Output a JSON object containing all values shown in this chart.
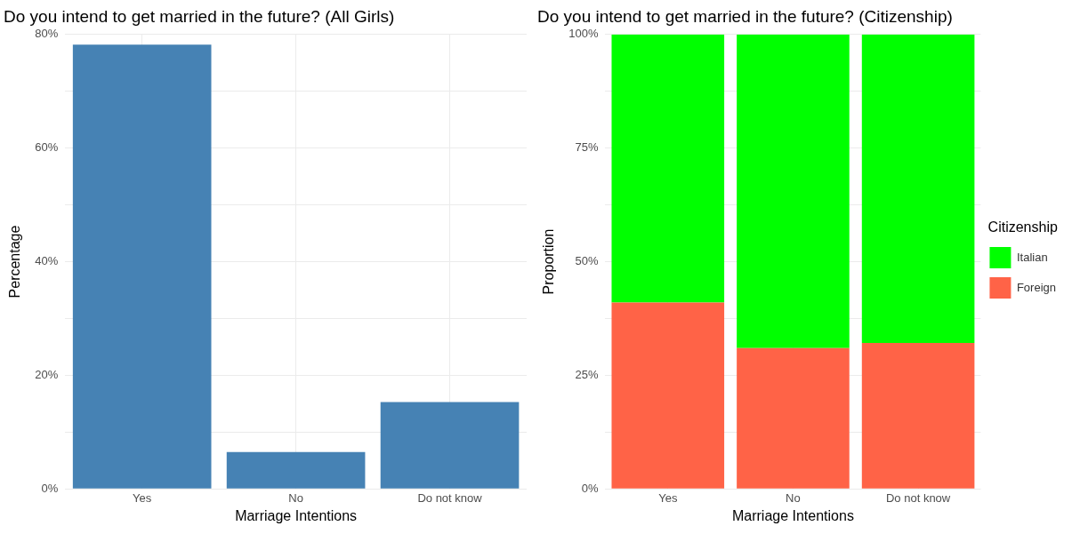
{
  "chart_data": [
    {
      "type": "bar",
      "title": "Do you intend to get married in the future? (All Girls)",
      "xlabel": "Marriage Intentions",
      "ylabel": "Percentage",
      "categories": [
        "Yes",
        "No",
        "Do not know"
      ],
      "values": [
        78.2,
        6.5,
        15.3
      ],
      "color": "#4682b4",
      "ylim": [
        0,
        80
      ],
      "yticks": [
        {
          "value": 0,
          "label": "0%"
        },
        {
          "value": 10,
          "label": null
        },
        {
          "value": 20,
          "label": "20%"
        },
        {
          "value": 30,
          "label": null
        },
        {
          "value": 40,
          "label": "40%"
        },
        {
          "value": 50,
          "label": null
        },
        {
          "value": 60,
          "label": "60%"
        },
        {
          "value": 70,
          "label": null
        },
        {
          "value": 80,
          "label": "80%"
        }
      ],
      "grid": true,
      "legend": false
    },
    {
      "type": "bar",
      "title": "Do you intend to get married in the future? (Citizenship)",
      "xlabel": "Marriage Intentions",
      "ylabel": "Proportion",
      "legend_title": "Citizenship",
      "categories": [
        "Yes",
        "No",
        "Do not know"
      ],
      "stacked": true,
      "series": [
        {
          "name": "Foreign",
          "color": "#ff6347",
          "values": [
            41.0,
            31.0,
            32.1
          ]
        },
        {
          "name": "Italian",
          "color": "#00ff00",
          "values": [
            59.0,
            69.0,
            67.9
          ]
        }
      ],
      "ylim": [
        0,
        100
      ],
      "yticks": [
        {
          "value": 0,
          "label": "0%"
        },
        {
          "value": 12.5,
          "label": null
        },
        {
          "value": 25,
          "label": "25%"
        },
        {
          "value": 37.5,
          "label": null
        },
        {
          "value": 50,
          "label": "50%"
        },
        {
          "value": 62.5,
          "label": null
        },
        {
          "value": 75,
          "label": "75%"
        },
        {
          "value": 87.5,
          "label": null
        },
        {
          "value": 100,
          "label": "100%"
        }
      ],
      "grid": true,
      "legend": "right"
    }
  ]
}
